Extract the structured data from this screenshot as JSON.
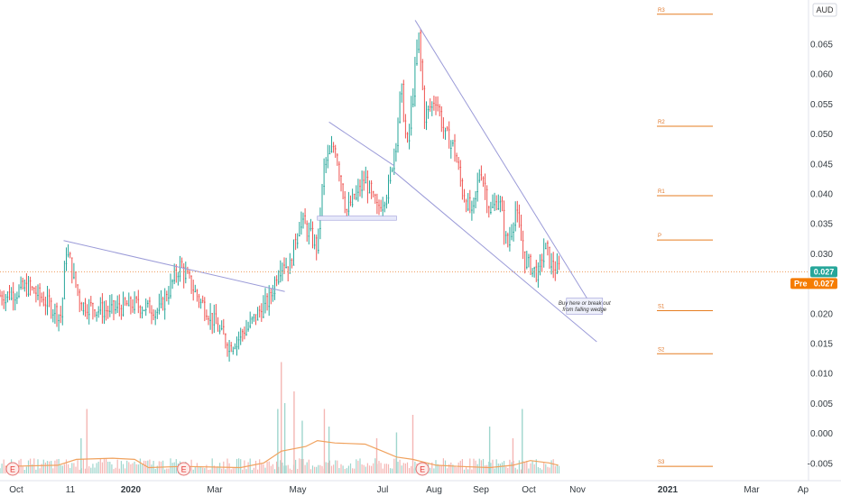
{
  "chart_data": {
    "type": "candlestick",
    "currency": "AUD",
    "colors": {
      "up": "#26a69a",
      "down": "#ef5350",
      "trend": "#9b9bd8",
      "level": "#e67e22",
      "last_price": "#26a69a",
      "pre_market": "#f57c00",
      "volume_ma": "#f0a25e",
      "volume_up": "#9fd6cd",
      "volume_down": "#f4b6b4"
    },
    "ylim": [
      -0.0075,
      0.071
    ],
    "y_ticks": [
      "0.065",
      "0.060",
      "0.055",
      "0.050",
      "0.045",
      "0.040",
      "0.035",
      "0.030",
      "0.025",
      "0.020",
      "0.015",
      "0.010",
      "0.005",
      "0.000",
      "-0.005"
    ],
    "x_ticks": [
      "Oct",
      "11",
      "2020",
      "Mar",
      "May",
      "Jul",
      "Aug",
      "Sep",
      "Oct",
      "Nov",
      "2021",
      "Mar",
      "Ap"
    ],
    "last_price": "0.027",
    "pre_label": "Pre",
    "pre_price": "0.027",
    "levels": [
      {
        "label": "R3",
        "value": 0.07
      },
      {
        "label": "R2",
        "value": 0.0513
      },
      {
        "label": "R1",
        "value": 0.0397
      },
      {
        "label": "P",
        "value": 0.0323
      },
      {
        "label": "S1",
        "value": 0.0205
      },
      {
        "label": "S2",
        "value": 0.0133
      },
      {
        "label": "S3",
        "value": -0.0055
      }
    ],
    "trendlines": [
      {
        "x1": "2019-11-20",
        "y1": 0.0322,
        "x2": "2020-05-28",
        "y2": 0.0237
      },
      {
        "x1": "2020-07-05",
        "y1": 0.052,
        "x2": "2020-08-30",
        "y2": 0.0447
      },
      {
        "x1": "2020-09-17",
        "y1": 0.069,
        "x2": "2021-02-15",
        "y2": 0.0215
      },
      {
        "x1": "2020-08-30",
        "y1": 0.0437,
        "x2": "2021-02-20",
        "y2": 0.0153
      }
    ],
    "range_box": {
      "x1": "2020-06-25",
      "x2": "2020-09-01",
      "y1": 0.0356,
      "y2": 0.0363
    },
    "wedge_box": {
      "x1": "2021-01-25",
      "x2": "2021-02-25",
      "y1": 0.0199,
      "y2": 0.0226
    },
    "annotation": {
      "line1": "Buy here or break out",
      "line2": "from falling wedge"
    },
    "earnings_label": "E",
    "earnings_dates": [
      "2019-10-01",
      "2020-02-25",
      "2020-09-17"
    ],
    "price_waypoints": [
      [
        "2019-10-01",
        0.023
      ],
      [
        "2019-10-20",
        0.0245
      ],
      [
        "2019-11-10",
        0.021
      ],
      [
        "2019-11-18",
        0.0195
      ],
      [
        "2019-11-22",
        0.031
      ],
      [
        "2019-12-05",
        0.0215
      ],
      [
        "2019-12-25",
        0.0205
      ],
      [
        "2020-01-20",
        0.0215
      ],
      [
        "2020-02-10",
        0.0205
      ],
      [
        "2020-02-28",
        0.028
      ],
      [
        "2020-03-15",
        0.0225
      ],
      [
        "2020-04-01",
        0.0175
      ],
      [
        "2020-04-10",
        0.0145
      ],
      [
        "2020-04-25",
        0.0175
      ],
      [
        "2020-05-15",
        0.0225
      ],
      [
        "2020-05-25",
        0.029
      ],
      [
        "2020-06-01",
        0.0275
      ],
      [
        "2020-06-10",
        0.036
      ],
      [
        "2020-06-25",
        0.031
      ],
      [
        "2020-07-01",
        0.045
      ],
      [
        "2020-07-10",
        0.048
      ],
      [
        "2020-07-20",
        0.037
      ],
      [
        "2020-08-05",
        0.0425
      ],
      [
        "2020-08-15",
        0.037
      ],
      [
        "2020-08-25",
        0.041
      ],
      [
        "2020-09-01",
        0.05
      ],
      [
        "2020-09-05",
        0.058
      ],
      [
        "2020-09-10",
        0.047
      ],
      [
        "2020-09-15",
        0.057
      ],
      [
        "2020-09-20",
        0.0665
      ],
      [
        "2020-09-25",
        0.053
      ],
      [
        "2020-10-05",
        0.056
      ],
      [
        "2020-10-12",
        0.05
      ],
      [
        "2020-10-20",
        0.048
      ],
      [
        "2020-10-28",
        0.04
      ],
      [
        "2020-11-05",
        0.0365
      ],
      [
        "2020-11-12",
        0.0445
      ],
      [
        "2020-11-20",
        0.037
      ],
      [
        "2020-11-28",
        0.0395
      ],
      [
        "2020-12-05",
        0.031
      ],
      [
        "2020-12-12",
        0.0375
      ],
      [
        "2020-12-20",
        0.029
      ],
      [
        "2021-01-01",
        0.0265
      ],
      [
        "2021-01-06",
        0.0315
      ],
      [
        "2021-01-12",
        0.028
      ],
      [
        "2021-01-18",
        0.027
      ]
    ],
    "volume_spikes": [
      [
        "2019-12-05",
        0.3
      ],
      [
        "2019-12-10",
        0.55
      ],
      [
        "2020-05-22",
        0.55
      ],
      [
        "2020-05-25",
        0.95
      ],
      [
        "2020-05-28",
        0.6
      ],
      [
        "2020-06-05",
        0.7
      ],
      [
        "2020-06-12",
        0.45
      ],
      [
        "2020-07-01",
        0.55
      ],
      [
        "2020-07-05",
        0.4
      ],
      [
        "2020-08-15",
        0.3
      ],
      [
        "2020-09-01",
        0.35
      ],
      [
        "2020-09-15",
        0.5
      ],
      [
        "2020-11-20",
        0.4
      ],
      [
        "2020-12-10",
        0.3
      ],
      [
        "2020-12-18",
        0.55
      ]
    ],
    "volume_ma": [
      [
        "2019-10-01",
        0.06
      ],
      [
        "2019-11-15",
        0.07
      ],
      [
        "2019-12-01",
        0.12
      ],
      [
        "2020-01-01",
        0.13
      ],
      [
        "2020-01-20",
        0.12
      ],
      [
        "2020-02-01",
        0.05
      ],
      [
        "2020-03-01",
        0.06
      ],
      [
        "2020-04-20",
        0.05
      ],
      [
        "2020-05-10",
        0.09
      ],
      [
        "2020-05-25",
        0.19
      ],
      [
        "2020-06-15",
        0.23
      ],
      [
        "2020-06-25",
        0.28
      ],
      [
        "2020-07-10",
        0.26
      ],
      [
        "2020-08-05",
        0.25
      ],
      [
        "2020-08-20",
        0.19
      ],
      [
        "2020-09-01",
        0.14
      ],
      [
        "2020-09-15",
        0.12
      ],
      [
        "2020-10-05",
        0.07
      ],
      [
        "2020-10-25",
        0.06
      ],
      [
        "2020-11-20",
        0.05
      ],
      [
        "2020-12-10",
        0.07
      ],
      [
        "2020-12-25",
        0.11
      ],
      [
        "2021-01-10",
        0.09
      ],
      [
        "2021-01-18",
        0.07
      ]
    ]
  }
}
